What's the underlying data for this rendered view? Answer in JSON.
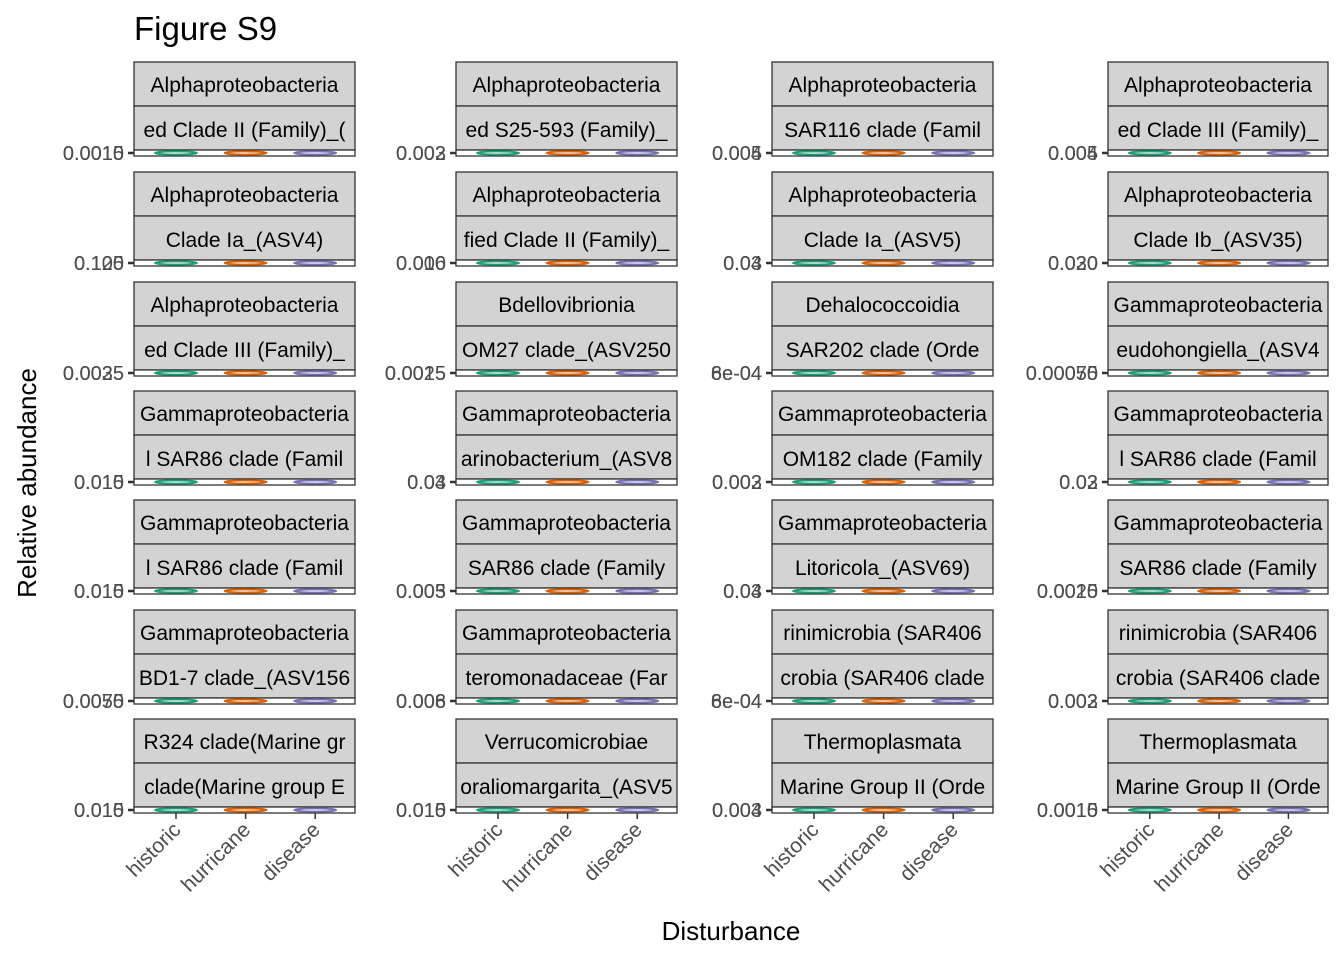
{
  "chart_data": {
    "type": "violin",
    "title": "Figure S9",
    "xlabel": "Disturbance",
    "ylabel": "Relative abundance",
    "categories": [
      "historic",
      "hurricane",
      "disease"
    ],
    "colors": [
      "#1b9e77",
      "#d95f02",
      "#7570b3"
    ],
    "strip_fill": "#d3d3d3",
    "facets": [
      {
        "strip1": "Alphaproteobacteria",
        "strip2": "ed Clade II (Family)_(",
        "yticks": [
          "0.0015",
          "0.0010"
        ]
      },
      {
        "strip1": "Alphaproteobacteria",
        "strip2": "ed S25-593 (Family)_",
        "yticks": [
          "0.003",
          "0.002"
        ]
      },
      {
        "strip1": "Alphaproteobacteria",
        "strip2": "SAR116 clade (Famil",
        "yticks": [
          "0.005",
          "0.004"
        ]
      },
      {
        "strip1": "Alphaproteobacteria",
        "strip2": "ed Clade III (Family)_",
        "yticks": [
          "0.005",
          "0.004"
        ]
      },
      {
        "strip1": "Alphaproteobacteria",
        "strip2": "Clade Ia_(ASV4)",
        "yticks": [
          "0.125",
          "0.100"
        ]
      },
      {
        "strip1": "Alphaproteobacteria",
        "strip2": "fied Clade II (Family)_",
        "yticks": [
          "0.010",
          "0.006"
        ]
      },
      {
        "strip1": "Alphaproteobacteria",
        "strip2": "Clade Ia_(ASV5)",
        "yticks": [
          "0.04",
          "0.03"
        ]
      },
      {
        "strip1": "Alphaproteobacteria",
        "strip2": "Clade Ib_(ASV35)",
        "yticks": [
          "0.030",
          "0.020"
        ]
      },
      {
        "strip1": "Alphaproteobacteria",
        "strip2": "ed Clade III (Family)_",
        "yticks": [
          "0.0035",
          "0.0025"
        ]
      },
      {
        "strip1": "Bdellovibrionia",
        "strip2": "OM27 clade_(ASV250",
        "yticks": [
          "0.0025",
          "0.0015"
        ]
      },
      {
        "strip1": "Dehalococcoidia",
        "strip2": "SAR202 clade (Orde",
        "yticks": [
          "8e-04",
          "6e-04"
        ]
      },
      {
        "strip1": "Gammaproteobacteria",
        "strip2": "eudohongiella_(ASV4",
        "yticks": [
          "0.00075",
          "0.00050"
        ]
      },
      {
        "strip1": "Gammaproteobacteria",
        "strip2": "l SAR86 clade (Famil",
        "yticks": [
          "0.015",
          "0.010"
        ]
      },
      {
        "strip1": "Gammaproteobacteria",
        "strip2": "arinobacterium_(ASV8",
        "yticks": [
          "0.04",
          "0.03"
        ]
      },
      {
        "strip1": "Gammaproteobacteria",
        "strip2": "OM182 clade (Family",
        "yticks": [
          "0.003",
          "0.002"
        ]
      },
      {
        "strip1": "Gammaproteobacteria",
        "strip2": "l SAR86 clade (Famil",
        "yticks": [
          "0.03",
          "0.02"
        ]
      },
      {
        "strip1": "Gammaproteobacteria",
        "strip2": "l SAR86 clade (Famil",
        "yticks": [
          "0.015",
          "0.010"
        ]
      },
      {
        "strip1": "Gammaproteobacteria",
        "strip2": "SAR86 clade (Family",
        "yticks": [
          "0.005",
          "0.003"
        ]
      },
      {
        "strip1": "Gammaproteobacteria",
        "strip2": "Litoricola_(ASV69)",
        "yticks": [
          "0.04",
          "0.03"
        ]
      },
      {
        "strip1": "Gammaproteobacteria",
        "strip2": "SAR86 clade (Family",
        "yticks": [
          "0.0020",
          "0.0015"
        ]
      },
      {
        "strip1": "Gammaproteobacteria",
        "strip2": "BD1-7 clade_(ASV156",
        "yticks": [
          "0.0075",
          "0.0050"
        ]
      },
      {
        "strip1": "Gammaproteobacteria",
        "strip2": "teromonadaceae (Far",
        "yticks": [
          "0.008",
          "0.006"
        ]
      },
      {
        "strip1": "rinimicrobia (SAR406",
        "strip2": "crobia (SAR406 clade",
        "yticks": [
          "8e-04",
          "6e-04"
        ]
      },
      {
        "strip1": "rinimicrobia (SAR406",
        "strip2": "crobia (SAR406 clade",
        "yticks": [
          "0.003",
          "0.002"
        ]
      },
      {
        "strip1": "R324 clade(Marine gr",
        "strip2": "clade(Marine group E",
        "yticks": [
          "0.015",
          "0.010"
        ]
      },
      {
        "strip1": "Verrucomicrobiae",
        "strip2": "oraliomargarita_(ASV5",
        "yticks": [
          "0.015",
          "0.010"
        ]
      },
      {
        "strip1": "Thermoplasmata",
        "strip2": "Marine Group II (Orde",
        "yticks": [
          "0.004",
          "0.003"
        ]
      },
      {
        "strip1": "Thermoplasmata",
        "strip2": "Marine Group II (Orde",
        "yticks": [
          "0.0015",
          "0.0010"
        ]
      }
    ]
  }
}
